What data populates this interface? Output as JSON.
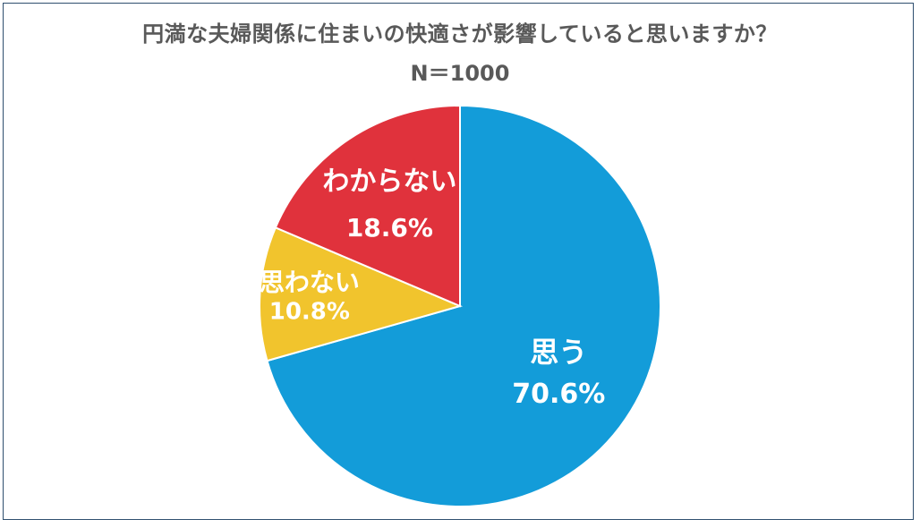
{
  "title": "円満な夫婦関係に住まいの快適さが影響していると思いますか？",
  "subtitle": "N＝1000",
  "chart_data": {
    "type": "pie",
    "title": "円満な夫婦関係に住まいの快適さが影響していると思いますか？",
    "subtitle": "N＝1000",
    "slices": [
      {
        "label": "思う",
        "value": 70.6,
        "display": "70.6%",
        "color": "#139CD9"
      },
      {
        "label": "思わない",
        "value": 10.8,
        "display": "10.8%",
        "color": "#F1C42D"
      },
      {
        "label": "わからない",
        "value": 18.6,
        "display": "18.6%",
        "color": "#E0323C"
      }
    ],
    "start": "12 o'clock",
    "direction": "clockwise",
    "legend": "none"
  }
}
